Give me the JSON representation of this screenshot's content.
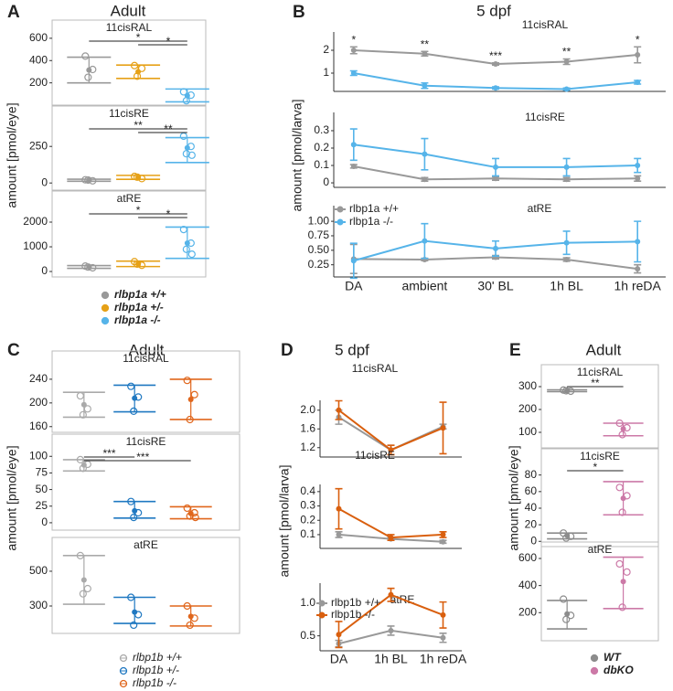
{
  "chart_data": [
    {
      "type": "dot",
      "label": "A",
      "title": "Adult",
      "ylabel": "amount [pmol/eye]",
      "series": [
        {
          "name": "rlbp1a +/+",
          "color": "#999999"
        },
        {
          "name": "rlbp1a +/-",
          "color": "#e6a117"
        },
        {
          "name": "rlbp1a -/-",
          "color": "#56b4e9"
        }
      ],
      "subplots": [
        {
          "title": "11cisRAL",
          "ylim": [
            25,
            640
          ],
          "yticks": [
            200,
            400,
            600
          ],
          "data": [
            {
              "points": [
                440,
                320,
                250
              ],
              "mean": 315,
              "range": [
                200,
                430
              ]
            },
            {
              "points": [
                355,
                330,
                260
              ],
              "mean": 300,
              "range": [
                240,
                360
              ]
            },
            {
              "points": [
                120,
                90,
                40
              ],
              "mean": 85,
              "range": [
                30,
                145
              ]
            }
          ],
          "brackets": [
            {
              "groups": [
                0,
                2
              ],
              "label": "*"
            },
            {
              "groups": [
                1,
                2
              ],
              "label": "*"
            }
          ]
        },
        {
          "title": "11cisRE",
          "ylim": [
            -30,
            420
          ],
          "yticks": [
            0,
            250
          ],
          "data": [
            {
              "points": [
                22,
                15,
                20
              ],
              "mean": 19,
              "range": [
                12,
                26
              ]
            },
            {
              "points": [
                45,
                30,
                40
              ],
              "mean": 38,
              "range": [
                25,
                52
              ]
            },
            {
              "points": [
                320,
                250,
                200,
                190
              ],
              "mean": 240,
              "range": [
                140,
                310
              ]
            }
          ],
          "brackets": [
            {
              "groups": [
                0,
                2
              ],
              "label": "**"
            },
            {
              "groups": [
                1,
                2
              ],
              "label": "**"
            }
          ]
        },
        {
          "title": "atRE",
          "ylim": [
            -110,
            2630
          ],
          "yticks": [
            0,
            1000,
            2000
          ],
          "data": [
            {
              "points": [
                220,
                150,
                180
              ],
              "mean": 180,
              "range": [
                130,
                240
              ]
            },
            {
              "points": [
                400,
                250,
                300
              ],
              "mean": 310,
              "range": [
                200,
                420
              ]
            },
            {
              "points": [
                1700,
                1150,
                900,
                700
              ],
              "mean": 1150,
              "range": [
                530,
                1800
              ]
            }
          ],
          "brackets": [
            {
              "groups": [
                0,
                2
              ],
              "label": "*"
            },
            {
              "groups": [
                1,
                2
              ],
              "label": "*"
            }
          ]
        }
      ]
    },
    {
      "type": "line",
      "label": "B",
      "title": "5 dpf",
      "ylabel": "amount [pmol/larva]",
      "categories": [
        "DA",
        "ambient",
        "30' BL",
        "1h BL",
        "1h reDA"
      ],
      "series": [
        {
          "name": "rlbp1a +/+",
          "color": "#999999"
        },
        {
          "name": "rlbp1a -/-",
          "color": "#56b4e9"
        }
      ],
      "subplots": [
        {
          "title": "11cisRAL",
          "ylim": [
            0.2,
            2.8
          ],
          "yticks": [
            1,
            2
          ],
          "stars": [
            "*",
            "**",
            "***",
            "**",
            "*"
          ],
          "data": [
            {
              "values": [
                2.0,
                1.85,
                1.4,
                1.5,
                1.8
              ],
              "errors": [
                0.15,
                0.1,
                0.05,
                0.12,
                0.35
              ]
            },
            {
              "values": [
                1.0,
                0.45,
                0.35,
                0.3,
                0.6
              ],
              "errors": [
                0.1,
                0.12,
                0.05,
                0.05,
                0.08
              ]
            }
          ]
        },
        {
          "title": "11cisRE",
          "ylim": [
            -0.026,
            0.405
          ],
          "yticks": [
            0,
            0.1,
            0.2,
            0.3
          ],
          "data": [
            {
              "values": [
                0.095,
                0.02,
                0.025,
                0.02,
                0.025
              ],
              "errors": [
                0.01,
                0.01,
                0.01,
                0.01,
                0.015
              ]
            },
            {
              "values": [
                0.22,
                0.165,
                0.09,
                0.09,
                0.1
              ],
              "errors": [
                0.09,
                0.09,
                0.05,
                0.05,
                0.04
              ]
            }
          ]
        },
        {
          "title": "atRE",
          "ylim": [
            0.04,
            1.27
          ],
          "yticks": [
            0.25,
            {
              "value": 0.5,
              "label": "0.50"
            },
            0.75,
            {
              "value": 1.0,
              "label": "1.00"
            }
          ],
          "data": [
            {
              "values": [
                0.35,
                0.34,
                0.38,
                0.34,
                0.18
              ],
              "errors": [
                0.25,
                0.02,
                0.03,
                0.03,
                0.07
              ]
            },
            {
              "values": [
                0.32,
                0.66,
                0.53,
                0.63,
                0.65
              ],
              "errors": [
                0.3,
                0.3,
                0.13,
                0.2,
                0.35
              ]
            }
          ]
        }
      ]
    },
    {
      "type": "dot",
      "label": "C",
      "title": "Adult",
      "ylabel": "amount [pmol/eye]",
      "series": [
        {
          "name": "rlbp1b +/+",
          "color": "#aaaaaa"
        },
        {
          "name": "rlbp1b +/-",
          "color": "#1f78c1"
        },
        {
          "name": "rlbp1b -/-",
          "color": "#e0661c"
        }
      ],
      "subplots": [
        {
          "title": "11cisRAL",
          "ylim": [
            155,
            263
          ],
          "yticks": [
            160,
            200,
            240
          ],
          "data": [
            {
              "points": [
                212,
                190,
                180
              ],
              "mean": 197,
              "range": [
                176,
                218
              ]
            },
            {
              "points": [
                228,
                210,
                186
              ],
              "mean": 208,
              "range": [
                185,
                230
              ]
            },
            {
              "points": [
                238,
                214,
                172
              ],
              "mean": 206,
              "range": [
                172,
                240
              ]
            }
          ],
          "brackets": []
        },
        {
          "title": "11cisRE",
          "ylim": [
            -7,
            110
          ],
          "yticks": [
            0,
            25,
            50,
            75,
            100
          ],
          "data": [
            {
              "points": [
                95,
                88,
                82
              ],
              "mean": 87,
              "range": [
                78,
                95
              ]
            },
            {
              "points": [
                32,
                15,
                8
              ],
              "mean": 18,
              "range": [
                7,
                32
              ]
            },
            {
              "points": [
                22,
                15,
                10,
                8
              ],
              "mean": 14,
              "range": [
                6,
                24
              ]
            }
          ],
          "brackets": [
            {
              "groups": [
                0,
                1
              ],
              "label": "***"
            },
            {
              "groups": [
                0,
                2
              ],
              "label": "***"
            }
          ]
        },
        {
          "title": "atRE",
          "ylim": [
            158,
            605
          ],
          "yticks": [
            300,
            500
          ],
          "data": [
            {
              "points": [
                590,
                400,
                370
              ],
              "mean": 450,
              "range": [
                310,
                590
              ]
            },
            {
              "points": [
                350,
                250,
                190
              ],
              "mean": 265,
              "range": [
                200,
                350
              ]
            },
            {
              "points": [
                300,
                230,
                190
              ],
              "mean": 240,
              "range": [
                185,
                300
              ]
            }
          ],
          "brackets": []
        }
      ]
    },
    {
      "type": "line",
      "label": "D",
      "title": "5 dpf",
      "ylabel": "amount [pmol/larva]",
      "categories": [
        "DA",
        "1h BL",
        "1h reDA"
      ],
      "series": [
        {
          "name": "rlbp1b +/+",
          "color": "#999999"
        },
        {
          "name": "rlbp1b -/-",
          "color": "#d95f0e"
        }
      ],
      "subplots": [
        {
          "title": "11cisRAL",
          "ylim": [
            1.0,
            2.21
          ],
          "yticks": [
            1.2,
            1.6,
            {
              "value": 2.0,
              "label": "2.0"
            }
          ],
          "data": [
            {
              "values": [
                1.85,
                1.15,
                1.65
              ],
              "errors": [
                0.15,
                0.1,
                0.05
              ]
            },
            {
              "values": [
                2.0,
                1.15,
                1.62
              ],
              "errors": [
                0.2,
                0.1,
                0.55
              ]
            }
          ]
        },
        {
          "title": "11cisRE",
          "ylim": [
            0.004,
            0.45
          ],
          "yticks": [
            0.1,
            0.2,
            0.3,
            0.4
          ],
          "data": [
            {
              "values": [
                0.1,
                0.07,
                0.05
              ],
              "errors": [
                0.02,
                0.01,
                0.01
              ]
            },
            {
              "values": [
                0.28,
                0.08,
                0.1
              ],
              "errors": [
                0.14,
                0.02,
                0.02
              ]
            }
          ]
        },
        {
          "title": "atRE",
          "ylim": [
            0.27,
            1.31
          ],
          "yticks": [
            0.5,
            {
              "value": 1.0,
              "label": "1.0"
            }
          ],
          "data": [
            {
              "values": [
                0.38,
                0.58,
                0.47
              ],
              "errors": [
                0.05,
                0.07,
                0.07
              ]
            },
            {
              "values": [
                0.52,
                1.13,
                0.82
              ],
              "errors": [
                0.2,
                0.1,
                0.2
              ]
            }
          ]
        }
      ]
    },
    {
      "type": "dot",
      "label": "E",
      "title": "Adult",
      "ylabel": "amount [pmol/eye]",
      "series": [
        {
          "name": "WT",
          "color": "#8c8c8c"
        },
        {
          "name": "dbKO",
          "color": "#cc79a7"
        }
      ],
      "subplots": [
        {
          "title": "11cisRAL",
          "ylim": [
            44,
            332
          ],
          "yticks": [
            100,
            200,
            300
          ],
          "data": [
            {
              "points": [
                285,
                280,
                282
              ],
              "mean": 282,
              "range": [
                278,
                286
              ]
            },
            {
              "points": [
                140,
                120,
                90
              ],
              "mean": 115,
              "range": [
                85,
                140
              ]
            }
          ],
          "brackets": [
            {
              "groups": [
                0,
                1
              ],
              "label": "**"
            }
          ]
        },
        {
          "title": "11cisRE",
          "ylim": [
            -3,
            94
          ],
          "yticks": [
            0,
            20,
            40,
            60,
            80
          ],
          "data": [
            {
              "points": [
                10,
                6,
                4
              ],
              "mean": 7,
              "range": [
                3,
                10
              ]
            },
            {
              "points": [
                65,
                55,
                35
              ],
              "mean": 52,
              "range": [
                32,
                72
              ]
            }
          ],
          "brackets": [
            {
              "groups": [
                0,
                1
              ],
              "label": "*"
            }
          ]
        },
        {
          "title": "atRE",
          "ylim": [
            13,
            627
          ],
          "yticks": [
            200,
            400,
            600
          ],
          "data": [
            {
              "points": [
                300,
                180,
                150
              ],
              "mean": 190,
              "range": [
                80,
                290
              ]
            },
            {
              "points": [
                560,
                500,
                240
              ],
              "mean": 430,
              "range": [
                230,
                610
              ]
            }
          ],
          "brackets": []
        }
      ]
    }
  ]
}
